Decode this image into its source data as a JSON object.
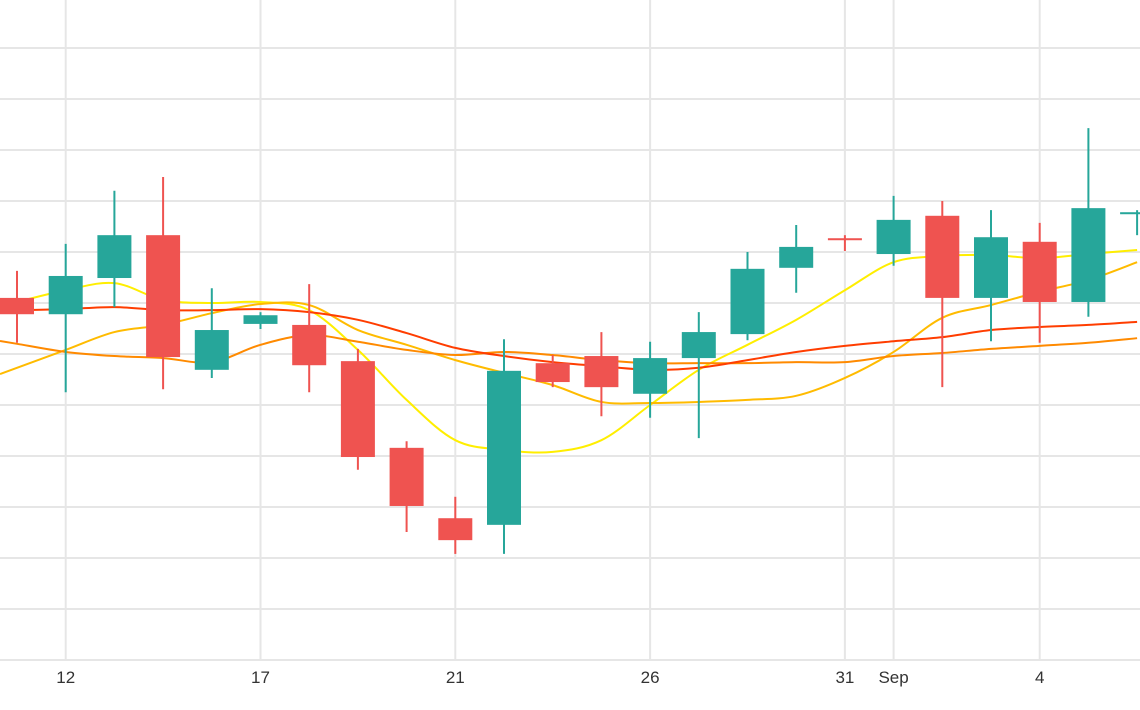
{
  "chart_data": {
    "type": "candlestick",
    "title": "",
    "xlabel": "",
    "ylabel": "",
    "ylim": [
      0,
      12.9
    ],
    "grid": true,
    "colors": {
      "up": "#26a69a",
      "down": "#ef5350",
      "grid": "#e6e6e6"
    },
    "x_ticks": [
      {
        "index": 1,
        "label": "12"
      },
      {
        "index": 5,
        "label": "17"
      },
      {
        "index": 9,
        "label": "21"
      },
      {
        "index": 13,
        "label": "26"
      },
      {
        "index": 17,
        "label": "31"
      },
      {
        "index": 18,
        "label": "Sep"
      },
      {
        "index": 21,
        "label": "4"
      }
    ],
    "candles": [
      {
        "o": 7.1,
        "h": 7.63,
        "l": 6.22,
        "c": 6.78
      },
      {
        "o": 6.78,
        "h": 8.16,
        "l": 5.25,
        "c": 7.53
      },
      {
        "o": 7.49,
        "h": 9.2,
        "l": 6.92,
        "c": 8.33
      },
      {
        "o": 8.33,
        "h": 9.47,
        "l": 5.31,
        "c": 5.94
      },
      {
        "o": 5.69,
        "h": 7.29,
        "l": 5.53,
        "c": 6.47
      },
      {
        "o": 6.59,
        "h": 6.82,
        "l": 6.49,
        "c": 6.76
      },
      {
        "o": 6.57,
        "h": 7.37,
        "l": 5.25,
        "c": 5.78
      },
      {
        "o": 5.86,
        "h": 6.1,
        "l": 3.73,
        "c": 3.98
      },
      {
        "o": 4.16,
        "h": 4.29,
        "l": 2.51,
        "c": 3.02
      },
      {
        "o": 2.78,
        "h": 3.2,
        "l": 2.08,
        "c": 2.35
      },
      {
        "o": 2.65,
        "h": 6.29,
        "l": 2.08,
        "c": 5.67
      },
      {
        "o": 5.82,
        "h": 5.98,
        "l": 5.35,
        "c": 5.45
      },
      {
        "o": 5.96,
        "h": 6.43,
        "l": 4.78,
        "c": 5.35
      },
      {
        "o": 5.22,
        "h": 6.24,
        "l": 4.75,
        "c": 5.92
      },
      {
        "o": 5.92,
        "h": 6.82,
        "l": 4.35,
        "c": 6.43
      },
      {
        "o": 6.39,
        "h": 8.0,
        "l": 6.27,
        "c": 7.67
      },
      {
        "o": 7.69,
        "h": 8.53,
        "l": 7.2,
        "c": 8.1
      },
      {
        "o": 8.27,
        "h": 8.33,
        "l": 8.02,
        "c": 8.25
      },
      {
        "o": 7.96,
        "h": 9.1,
        "l": 7.73,
        "c": 8.63
      },
      {
        "o": 8.71,
        "h": 9.0,
        "l": 5.35,
        "c": 7.1
      },
      {
        "o": 7.1,
        "h": 8.82,
        "l": 6.25,
        "c": 8.29
      },
      {
        "o": 8.2,
        "h": 8.57,
        "l": 6.22,
        "c": 7.02
      },
      {
        "o": 7.02,
        "h": 10.43,
        "l": 6.73,
        "c": 8.86
      },
      {
        "o": 8.76,
        "h": 8.82,
        "l": 8.33,
        "c": 8.78
      }
    ],
    "series": [
      {
        "name": "ma-yellow",
        "color": "#ffee00",
        "values": [
          7.02,
          7.25,
          7.39,
          7.06,
          7.0,
          7.02,
          6.86,
          6.08,
          5.1,
          4.31,
          4.12,
          4.08,
          4.31,
          5.0,
          5.69,
          6.18,
          6.67,
          7.25,
          7.8,
          7.92,
          7.94,
          7.88,
          7.96,
          8.04
        ]
      },
      {
        "name": "ma-gold",
        "color": "#ffbb00",
        "values": [
          5.73,
          6.08,
          6.43,
          6.57,
          6.8,
          6.98,
          6.96,
          6.47,
          6.18,
          5.88,
          5.63,
          5.39,
          5.06,
          5.04,
          5.06,
          5.1,
          5.18,
          5.53,
          6.04,
          6.71,
          6.96,
          7.22,
          7.45,
          7.8
        ]
      },
      {
        "name": "ma-orange",
        "color": "#ff8a00",
        "values": [
          6.2,
          6.04,
          5.96,
          5.92,
          5.84,
          6.18,
          6.37,
          6.24,
          6.08,
          5.98,
          6.04,
          5.98,
          5.88,
          5.82,
          5.82,
          5.82,
          5.84,
          5.84,
          5.96,
          6.02,
          6.1,
          6.16,
          6.22,
          6.31
        ]
      },
      {
        "name": "ma-red",
        "color": "#ff3d00",
        "values": [
          6.86,
          6.88,
          6.92,
          6.86,
          6.86,
          6.88,
          6.82,
          6.67,
          6.41,
          6.12,
          5.96,
          5.84,
          5.76,
          5.69,
          5.73,
          5.88,
          6.04,
          6.16,
          6.25,
          6.33,
          6.47,
          6.53,
          6.57,
          6.63
        ]
      }
    ]
  }
}
